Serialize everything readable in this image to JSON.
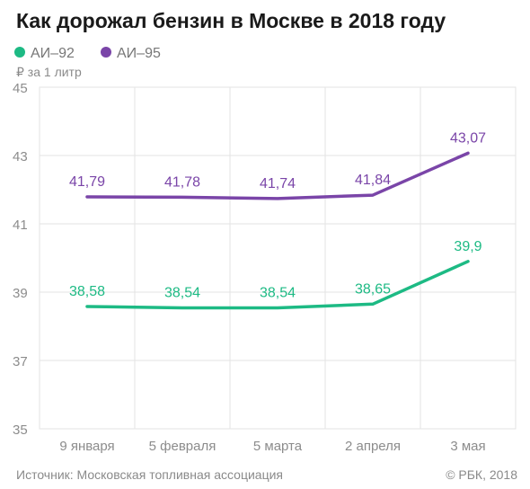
{
  "title": "Как дорожал бензин в Москве в 2018 году",
  "unit": "₽ за 1 литр",
  "source": "Источник: Московская топливная ассоциация",
  "copyright": "© РБК, 2018",
  "chart_data": {
    "type": "line",
    "title": "Как дорожал бензин в Москве в 2018 году",
    "ylabel": "₽ за 1 литр",
    "categories": [
      "9 января",
      "5 февраля",
      "5 марта",
      "2 апреля",
      "3 мая"
    ],
    "series": [
      {
        "name": "АИ–92",
        "color": "#1dba84",
        "values": [
          38.58,
          38.54,
          38.54,
          38.65,
          39.9
        ],
        "labels": [
          "38,58",
          "38,54",
          "38,54",
          "38,65",
          "39,9"
        ]
      },
      {
        "name": "АИ–95",
        "color": "#7a45a8",
        "values": [
          41.79,
          41.78,
          41.74,
          41.84,
          43.07
        ],
        "labels": [
          "41,79",
          "41,78",
          "41,74",
          "41,84",
          "43,07"
        ]
      }
    ],
    "ylim": [
      35,
      45
    ],
    "yticks": [
      35,
      37,
      39,
      41,
      43,
      45
    ],
    "grid": true,
    "legend_position": "top-left"
  }
}
